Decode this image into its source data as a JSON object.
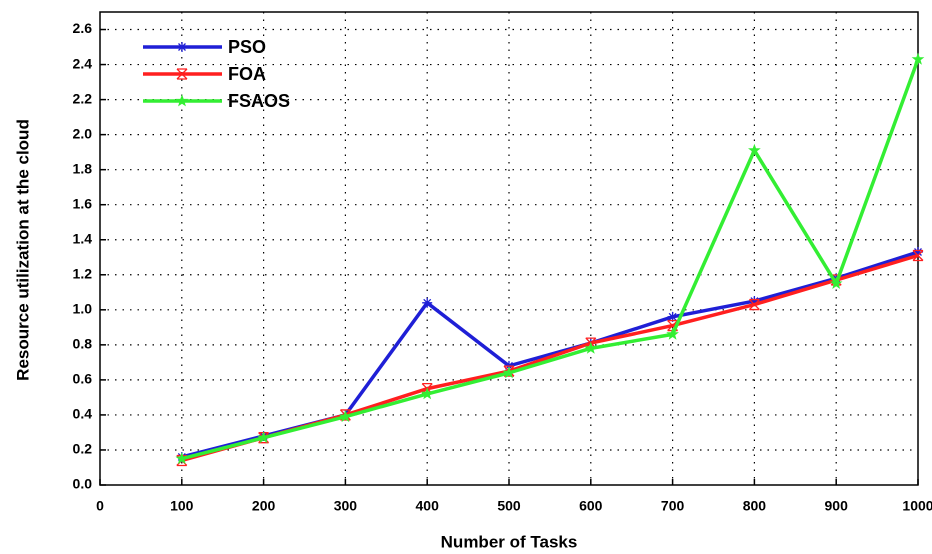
{
  "chart_data": {
    "type": "line",
    "x_label": "Number of Tasks",
    "y_label": "Resource utilization at the cloud",
    "x": [
      100,
      200,
      300,
      400,
      500,
      600,
      700,
      800,
      900,
      1000
    ],
    "series": [
      {
        "name": "PSO",
        "color": "#1f1fd6",
        "marker": "asterisk",
        "values": [
          0.16,
          0.28,
          0.4,
          1.04,
          0.68,
          0.81,
          0.96,
          1.05,
          1.18,
          1.33
        ]
      },
      {
        "name": "FOA",
        "color": "#ff1f1f",
        "marker": "x-box",
        "values": [
          0.14,
          0.27,
          0.4,
          0.55,
          0.65,
          0.81,
          0.91,
          1.03,
          1.17,
          1.31
        ]
      },
      {
        "name": "FSAOS",
        "color": "#33ee33",
        "marker": "star",
        "values": [
          0.15,
          0.27,
          0.39,
          0.52,
          0.64,
          0.78,
          0.86,
          1.91,
          1.15,
          2.43
        ]
      }
    ],
    "xlim": [
      0,
      1000
    ],
    "xticks": [
      0,
      100,
      200,
      300,
      400,
      500,
      600,
      700,
      800,
      900,
      1000
    ],
    "ylim": [
      0,
      2.7
    ],
    "yticks": [
      {
        "value": 0,
        "label": "0.0"
      },
      0.2,
      0.4,
      0.6,
      0.8,
      {
        "value": 1,
        "label": "1.0"
      },
      1.2,
      1.4,
      1.6,
      1.8,
      {
        "value": 2,
        "label": "2.0"
      },
      2.2,
      2.4,
      2.6
    ],
    "grid": true,
    "legend": "upper-left"
  }
}
